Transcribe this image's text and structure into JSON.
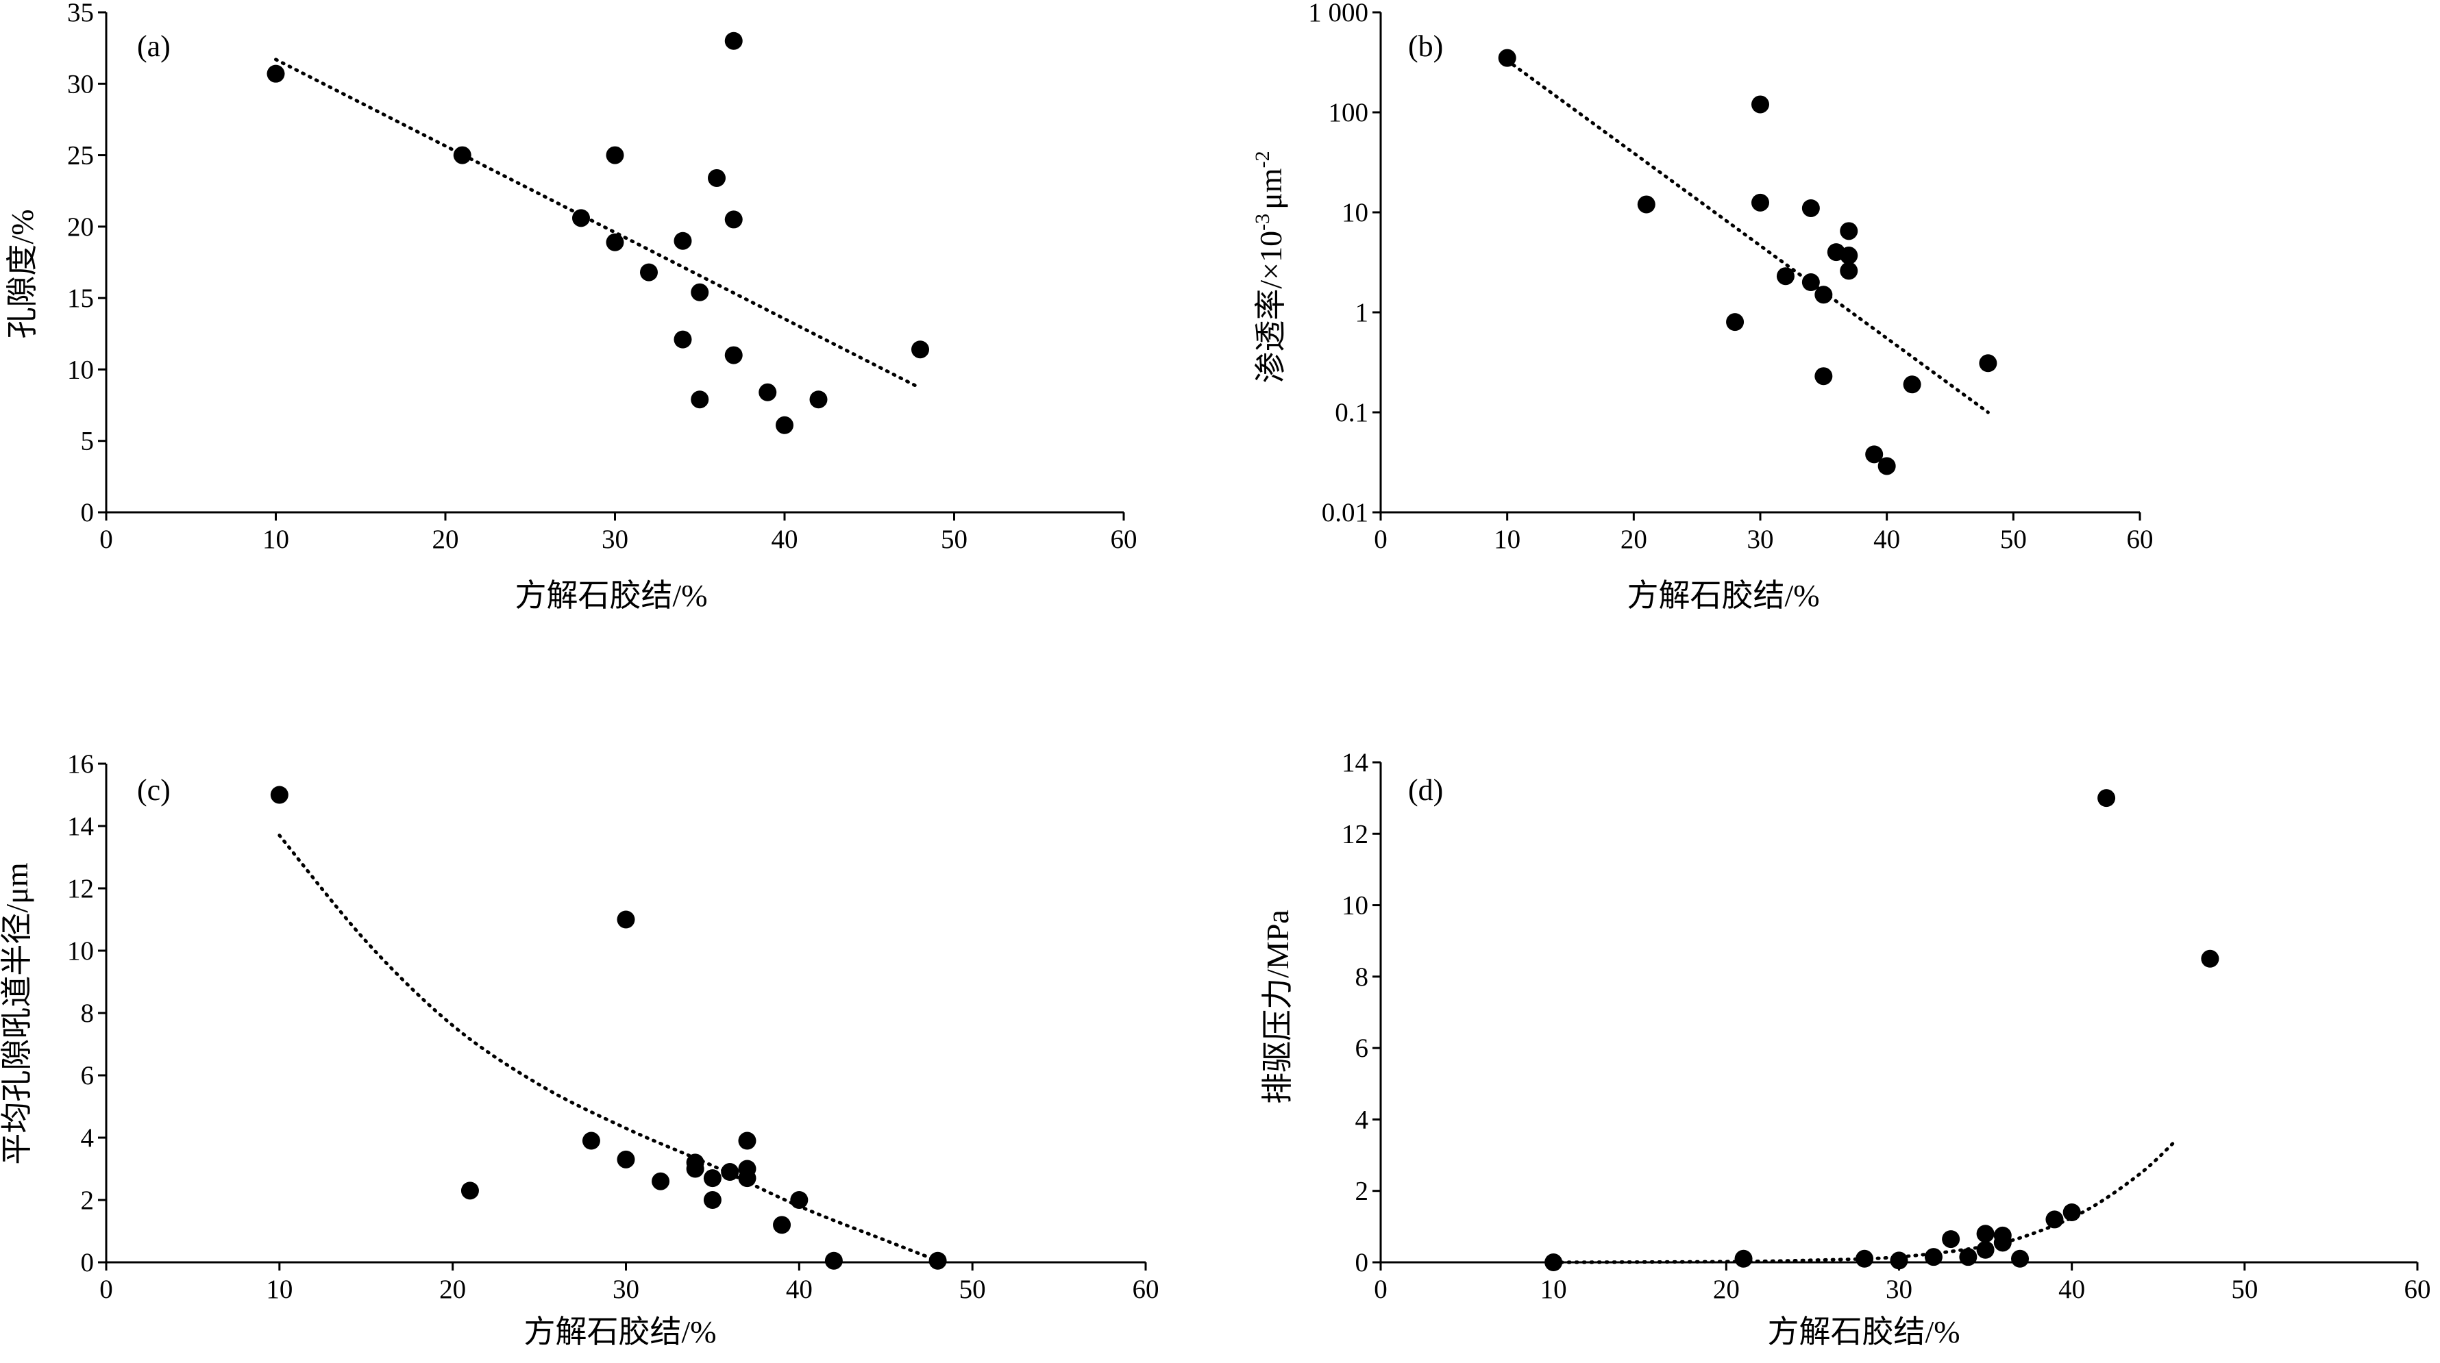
{
  "chart_data": [
    {
      "id": "a",
      "type": "scatter",
      "panel_label": "(a)",
      "title": "",
      "xlabel": "方解石胶结/%",
      "ylabel": "孔隙度/%",
      "xlim": [
        0,
        60
      ],
      "ylim": [
        0,
        35
      ],
      "yscale": "linear",
      "x_ticks": [
        "0",
        "10",
        "20",
        "30",
        "40",
        "50",
        "60"
      ],
      "y_ticks": [
        "0",
        "5",
        "10",
        "15",
        "20",
        "25",
        "30",
        "35"
      ],
      "grid": false,
      "points": [
        {
          "x": 10,
          "y": 30.7
        },
        {
          "x": 21,
          "y": 25.0
        },
        {
          "x": 28,
          "y": 20.6
        },
        {
          "x": 30,
          "y": 25.0
        },
        {
          "x": 30,
          "y": 18.9
        },
        {
          "x": 32,
          "y": 16.8
        },
        {
          "x": 34,
          "y": 19.0
        },
        {
          "x": 34,
          "y": 12.1
        },
        {
          "x": 35,
          "y": 15.4
        },
        {
          "x": 35,
          "y": 7.9
        },
        {
          "x": 36,
          "y": 23.4
        },
        {
          "x": 37,
          "y": 33.0
        },
        {
          "x": 37,
          "y": 20.5
        },
        {
          "x": 37,
          "y": 11.0
        },
        {
          "x": 39,
          "y": 8.4
        },
        {
          "x": 40,
          "y": 6.1
        },
        {
          "x": 42,
          "y": 7.9
        },
        {
          "x": 48,
          "y": 11.4
        }
      ],
      "trendline": {
        "kind": "linear",
        "x_range": [
          10,
          48
        ],
        "y_range": [
          31.7,
          8.7
        ]
      }
    },
    {
      "id": "b",
      "type": "scatter",
      "panel_label": "(b)",
      "title": "",
      "xlabel": "方解石胶结/%",
      "ylabel_main": "渗透率/×10",
      "ylabel_exp1": "-3",
      "ylabel_unit": "μm",
      "ylabel_exp2": "-2",
      "xlim": [
        0,
        60
      ],
      "ylim": [
        0.01,
        1000
      ],
      "yscale": "log",
      "x_ticks": [
        "0",
        "10",
        "20",
        "30",
        "40",
        "50",
        "60"
      ],
      "y_ticks": [
        "0.01",
        "0.1",
        "1",
        "10",
        "100",
        "1 000"
      ],
      "y_tick_values": [
        0.01,
        0.1,
        1,
        10,
        100,
        1000
      ],
      "grid": false,
      "points": [
        {
          "x": 10,
          "y": 350
        },
        {
          "x": 21,
          "y": 12
        },
        {
          "x": 28,
          "y": 0.8
        },
        {
          "x": 30,
          "y": 120
        },
        {
          "x": 30,
          "y": 12.5
        },
        {
          "x": 32,
          "y": 2.3
        },
        {
          "x": 34,
          "y": 11
        },
        {
          "x": 34,
          "y": 2.0
        },
        {
          "x": 35,
          "y": 1.5
        },
        {
          "x": 35,
          "y": 0.23
        },
        {
          "x": 36,
          "y": 4.0
        },
        {
          "x": 37,
          "y": 6.5
        },
        {
          "x": 37,
          "y": 3.7
        },
        {
          "x": 37,
          "y": 2.6
        },
        {
          "x": 39,
          "y": 0.038
        },
        {
          "x": 40,
          "y": 0.029
        },
        {
          "x": 42,
          "y": 0.19
        },
        {
          "x": 48,
          "y": 0.31
        }
      ],
      "trendline": {
        "kind": "exponential",
        "x_range": [
          10,
          48
        ],
        "y_range": [
          330,
          0.1
        ]
      }
    },
    {
      "id": "c",
      "type": "scatter",
      "panel_label": "(c)",
      "title": "",
      "xlabel": "方解石胶结/%",
      "ylabel": "平均孔隙吼道半径/μm",
      "xlim": [
        0,
        60
      ],
      "ylim": [
        0,
        16
      ],
      "yscale": "linear",
      "x_ticks": [
        "0",
        "10",
        "20",
        "30",
        "40",
        "50",
        "60"
      ],
      "y_ticks": [
        "0",
        "2",
        "4",
        "6",
        "8",
        "10",
        "12",
        "14",
        "16"
      ],
      "grid": false,
      "points": [
        {
          "x": 10,
          "y": 15.0
        },
        {
          "x": 21,
          "y": 2.3
        },
        {
          "x": 28,
          "y": 3.9
        },
        {
          "x": 30,
          "y": 11.0
        },
        {
          "x": 30,
          "y": 3.3
        },
        {
          "x": 32,
          "y": 2.6
        },
        {
          "x": 34,
          "y": 3.2
        },
        {
          "x": 34,
          "y": 3.0
        },
        {
          "x": 35,
          "y": 2.7
        },
        {
          "x": 35,
          "y": 2.0
        },
        {
          "x": 36,
          "y": 2.9
        },
        {
          "x": 37,
          "y": 3.9
        },
        {
          "x": 37,
          "y": 3.0
        },
        {
          "x": 37,
          "y": 2.7
        },
        {
          "x": 39,
          "y": 1.2
        },
        {
          "x": 40,
          "y": 2.0
        },
        {
          "x": 42,
          "y": 0.05
        },
        {
          "x": 48,
          "y": 0.05
        }
      ],
      "trendline": {
        "kind": "curve",
        "x": [
          10,
          15,
          20,
          25,
          30,
          35,
          40,
          45,
          48
        ],
        "y": [
          13.7,
          10.3,
          7.6,
          5.7,
          4.3,
          3.1,
          1.8,
          0.7,
          0.05
        ]
      }
    },
    {
      "id": "d",
      "type": "scatter",
      "panel_label": "(d)",
      "title": "",
      "xlabel": "方解石胶结/%",
      "ylabel": "排驱压力/MPa",
      "xlim": [
        0,
        60
      ],
      "ylim": [
        0,
        14
      ],
      "yscale": "linear",
      "x_ticks": [
        "0",
        "10",
        "20",
        "30",
        "40",
        "50",
        "60"
      ],
      "y_ticks": [
        "0",
        "2",
        "4",
        "6",
        "8",
        "10",
        "12",
        "14"
      ],
      "grid": false,
      "points": [
        {
          "x": 10,
          "y": 0.0
        },
        {
          "x": 21,
          "y": 0.1
        },
        {
          "x": 28,
          "y": 0.1
        },
        {
          "x": 30,
          "y": 0.05
        },
        {
          "x": 32,
          "y": 0.15
        },
        {
          "x": 33,
          "y": 0.65
        },
        {
          "x": 34,
          "y": 0.15
        },
        {
          "x": 35,
          "y": 0.8
        },
        {
          "x": 35,
          "y": 0.35
        },
        {
          "x": 36,
          "y": 0.75
        },
        {
          "x": 36,
          "y": 0.55
        },
        {
          "x": 37,
          "y": 0.1
        },
        {
          "x": 39,
          "y": 1.2
        },
        {
          "x": 40,
          "y": 1.4
        },
        {
          "x": 42,
          "y": 13.0
        },
        {
          "x": 48,
          "y": 8.5
        }
      ],
      "trendline": {
        "kind": "exponential",
        "x": [
          10,
          20,
          25,
          30,
          35,
          38,
          41,
          44,
          46
        ],
        "y": [
          0.0,
          0.02,
          0.06,
          0.15,
          0.45,
          0.85,
          1.5,
          2.5,
          3.4
        ]
      }
    }
  ]
}
